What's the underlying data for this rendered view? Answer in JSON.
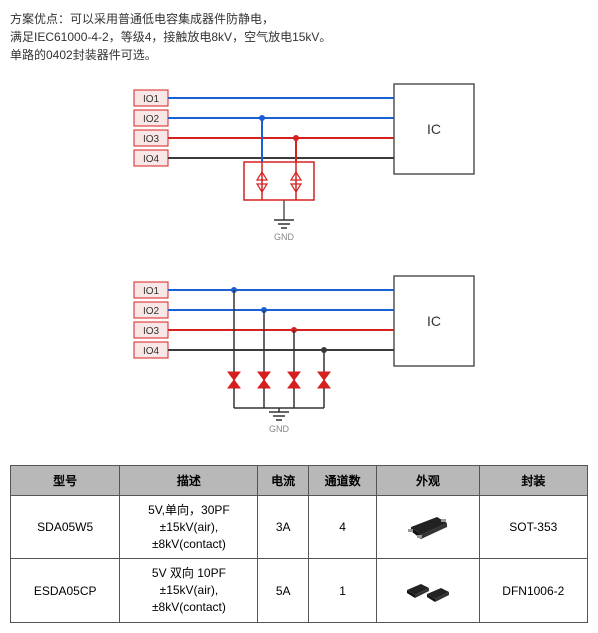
{
  "description": {
    "line1": "方案优点：可以采用普通低电容集成器件防静电，",
    "line2": "满足IEC61000-4-2，等级4，接触放电8kV，空气放电15kV。",
    "line3": "单路的0402封装器件可选。"
  },
  "diagram": {
    "io_labels": [
      "IO1",
      "IO2",
      "IO3",
      "IO4"
    ],
    "ic_label": "IC",
    "gnd_label": "GND",
    "io_colors": [
      "#1a5fd6",
      "#1a5fd6",
      "#d62020",
      "#3a3a3a"
    ],
    "io_fill": "#f9e6e6",
    "io_border": "#d62020",
    "ic_border": "#555",
    "wire_width": 2,
    "tvs_color": "#d62020",
    "gnd_text_color": "#888"
  },
  "table": {
    "headers": [
      "型号",
      "描述",
      "电流",
      "通道数",
      "外观",
      "封装"
    ],
    "rows": [
      {
        "model": "SDA05W5",
        "desc": "5V,单向，30PF\n±15kV(air),\n±8kV(contact)",
        "current": "3A",
        "channels": "4",
        "package": "SOT-353",
        "pkg_type": "sot"
      },
      {
        "model": "ESDA05CP",
        "desc": "5V 双向 10PF\n±15kV(air),\n±8kV(contact)",
        "current": "5A",
        "channels": "1",
        "package": "DFN1006-2",
        "pkg_type": "dfn"
      }
    ]
  },
  "colors": {
    "header_bg": "#b8b8b8",
    "border": "#555"
  }
}
